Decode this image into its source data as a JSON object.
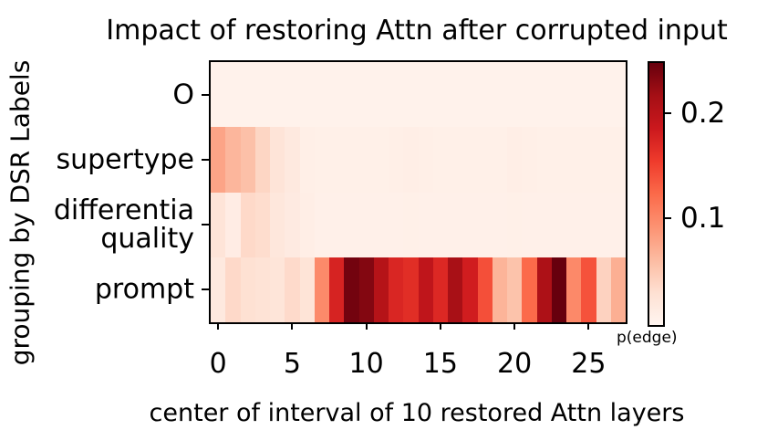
{
  "title": "Impact of restoring Attn after corrupted input",
  "chart_data": {
    "type": "heatmap",
    "title": "Impact of restoring Attn after corrupted input",
    "xlabel": "center of interval of 10 restored Attn layers",
    "ylabel": "grouping by DSR Labels",
    "colormap": "Reds",
    "vmin": 0,
    "vmax": 0.25,
    "x_range": [
      -0.5,
      27.5
    ],
    "x_ticks": [
      0,
      5,
      10,
      15,
      20,
      25
    ],
    "columns": [
      0,
      1,
      2,
      3,
      4,
      5,
      6,
      7,
      8,
      9,
      10,
      11,
      12,
      13,
      14,
      15,
      16,
      17,
      18,
      19,
      20,
      21,
      22,
      23,
      24,
      25,
      26,
      27
    ],
    "rows": [
      {
        "label": "O",
        "label_lines": [
          "O"
        ],
        "values": [
          0.005,
          0.005,
          0.005,
          0.005,
          0.005,
          0.005,
          0.005,
          0.005,
          0.005,
          0.005,
          0.005,
          0.005,
          0.005,
          0.005,
          0.005,
          0.005,
          0.005,
          0.005,
          0.005,
          0.005,
          0.005,
          0.005,
          0.005,
          0.005,
          0.005,
          0.005,
          0.005,
          0.005
        ]
      },
      {
        "label": "supertype",
        "label_lines": [
          "supertype"
        ],
        "values": [
          0.08,
          0.066,
          0.058,
          0.04,
          0.025,
          0.018,
          0.009,
          0.008,
          0.008,
          0.008,
          0.008,
          0.008,
          0.009,
          0.01,
          0.009,
          0.008,
          0.008,
          0.008,
          0.008,
          0.008,
          0.01,
          0.009,
          0.008,
          0.008,
          0.008,
          0.008,
          0.008,
          0.008
        ]
      },
      {
        "label": "differentia quality",
        "label_lines": [
          "differentia",
          "quality"
        ],
        "values": [
          0.025,
          0.013,
          0.037,
          0.034,
          0.021,
          0.016,
          0.01,
          0.007,
          0.007,
          0.007,
          0.007,
          0.007,
          0.007,
          0.008,
          0.007,
          0.007,
          0.007,
          0.007,
          0.007,
          0.007,
          0.008,
          0.007,
          0.007,
          0.007,
          0.007,
          0.007,
          0.007,
          0.007
        ]
      },
      {
        "label": "prompt",
        "label_lines": [
          "prompt"
        ],
        "values": [
          0.018,
          0.037,
          0.03,
          0.027,
          0.024,
          0.036,
          0.026,
          0.1,
          0.178,
          0.244,
          0.236,
          0.206,
          0.175,
          0.168,
          0.197,
          0.173,
          0.216,
          0.183,
          0.143,
          0.068,
          0.056,
          0.125,
          0.212,
          0.25,
          0.101,
          0.141,
          0.043,
          0.072
        ]
      }
    ],
    "colorbar": {
      "label": "p(edge)",
      "ticks": [
        0.1,
        0.2
      ]
    },
    "legend_position": "right",
    "grid": false
  }
}
